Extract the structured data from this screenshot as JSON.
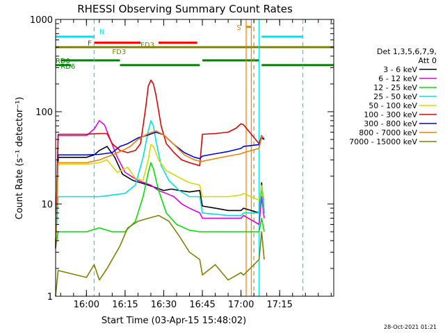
{
  "colors": {
    "background": "#ffffff",
    "axis": "#000000",
    "series": [
      "#000000",
      "#e000e0",
      "#00e000",
      "#00e0e0",
      "#d8d800",
      "#e00000",
      "#0000e0",
      "#f08000",
      "#808000"
    ],
    "cyan": "#00e0f0",
    "orange": "#f08000",
    "red": "#ff0000",
    "olive": "#808000",
    "green": "#008000"
  },
  "chart_data": {
    "type": "line",
    "title": "RHESSI Observing Summary Count Rates",
    "xlabel": "Start Time (03-Apr-15 15:48:02)",
    "ylabel": "Count Rate (s⁻¹ detector⁻¹)",
    "y_scale": "log",
    "ylim": [
      1,
      1000
    ],
    "xlim": [
      "15:48:02",
      "17:36:00"
    ],
    "x_unit": "UT time on 03-Apr-2015",
    "x_ticks": [
      "16:00",
      "16:15",
      "16:30",
      "16:45",
      "17:00",
      "17:15"
    ],
    "y_ticks": [
      {
        "value": 1,
        "label": "1"
      },
      {
        "value": 10,
        "label": "10"
      },
      {
        "value": 100,
        "label": "100"
      },
      {
        "value": 1000,
        "label": "1000"
      }
    ],
    "legend": {
      "placement": "right",
      "header_lines": [
        "Det 1,3,5,6,7,9,",
        "Att 0"
      ],
      "entries": [
        "3 - 6 keV",
        "6 - 12 keV",
        "12 - 25 keV",
        "25 - 50 keV",
        "50 - 100 keV",
        "100 - 300 keV",
        "300 - 800 keV",
        "800 - 7000 keV",
        "7000 - 15000 keV"
      ]
    },
    "gaps": [
      [
        "16:44",
        "16:45"
      ],
      [
        "17:02",
        "17:07"
      ]
    ],
    "series": [
      {
        "name": "3 - 6 keV",
        "x": [
          "15:48",
          "15:49",
          "16:00",
          "16:03",
          "16:05",
          "16:08",
          "16:11",
          "16:14",
          "16:18",
          "16:21",
          "16:24",
          "16:27",
          "16:30",
          "16:33",
          "16:36",
          "16:40",
          "16:44",
          "16:45",
          "16:50",
          "16:55",
          "17:00",
          "17:01",
          "17:07",
          "17:08",
          "17:09"
        ],
        "y": [
          3.3,
          32,
          32,
          34,
          38,
          42,
          32,
          21,
          18,
          17,
          16,
          15,
          14,
          14.5,
          14,
          13.5,
          14,
          9.5,
          9,
          8.5,
          8.5,
          9,
          8,
          17,
          8
        ]
      },
      {
        "name": "6 - 12 keV",
        "x": [
          "15:48",
          "15:49",
          "16:00",
          "16:03",
          "16:05",
          "16:07",
          "16:09",
          "16:12",
          "16:15",
          "16:20",
          "16:25",
          "16:28",
          "16:31",
          "16:34",
          "16:37",
          "16:40",
          "16:44",
          "16:45",
          "16:50",
          "16:55",
          "17:00",
          "17:01",
          "17:07",
          "17:08",
          "17:09"
        ],
        "y": [
          3.3,
          55,
          55,
          65,
          80,
          72,
          52,
          32,
          22,
          18,
          16,
          14,
          13,
          12,
          10,
          9,
          8,
          7,
          7,
          7,
          7,
          7.5,
          6,
          12,
          7
        ]
      },
      {
        "name": "12 - 25 keV",
        "x": [
          "15:48",
          "15:49",
          "16:00",
          "16:05",
          "16:10",
          "16:15",
          "16:19",
          "16:22",
          "16:24",
          "16:25",
          "16:26",
          "16:28",
          "16:31",
          "16:35",
          "16:40",
          "16:44",
          "16:45",
          "17:01",
          "17:07",
          "17:08",
          "17:09"
        ],
        "y": [
          3.3,
          5,
          5,
          5.5,
          5,
          5,
          6.5,
          12,
          22,
          28,
          24,
          14,
          8,
          6,
          5.2,
          5,
          5,
          5,
          5,
          7,
          5
        ]
      },
      {
        "name": "25 - 50 keV",
        "x": [
          "15:48",
          "15:49",
          "16:00",
          "16:05",
          "16:10",
          "16:15",
          "16:19",
          "16:22",
          "16:24",
          "16:25",
          "16:26",
          "16:27",
          "16:29",
          "16:32",
          "16:36",
          "16:40",
          "16:44",
          "16:45",
          "16:55",
          "17:00",
          "17:01",
          "17:07",
          "17:08",
          "17:09"
        ],
        "y": [
          3.3,
          12,
          12,
          12,
          12.5,
          13,
          16,
          32,
          62,
          80,
          70,
          48,
          26,
          18,
          14,
          12,
          12,
          8,
          7.5,
          7.5,
          8,
          8,
          15,
          8
        ]
      },
      {
        "name": "50 - 100 keV",
        "x": [
          "15:48",
          "15:49",
          "16:00",
          "16:05",
          "16:08",
          "16:12",
          "16:16",
          "16:19",
          "16:22",
          "16:24",
          "16:25",
          "16:26",
          "16:28",
          "16:31",
          "16:35",
          "16:40",
          "16:44",
          "16:45",
          "16:50",
          "16:55",
          "17:00",
          "17:01",
          "17:07",
          "17:08",
          "17:09"
        ],
        "y": [
          3.3,
          27,
          27,
          28,
          30,
          22,
          25,
          19,
          18,
          30,
          44,
          42,
          30,
          23,
          20,
          17,
          16,
          12,
          12,
          12,
          12.5,
          13,
          11,
          16,
          11
        ]
      },
      {
        "name": "100 - 300 keV",
        "x": [
          "15:48",
          "15:49",
          "16:00",
          "16:05",
          "16:08",
          "16:10",
          "16:13",
          "16:16",
          "16:19",
          "16:21",
          "16:23",
          "16:24",
          "16:25",
          "16:26",
          "16:27",
          "16:29",
          "16:31",
          "16:34",
          "16:37",
          "16:40",
          "16:44",
          "16:45",
          "16:50",
          "16:55",
          "16:58",
          "17:00",
          "17:01",
          "17:07",
          "17:08",
          "17:09"
        ],
        "y": [
          3.3,
          57,
          57,
          58,
          58,
          45,
          38,
          36,
          38,
          45,
          110,
          190,
          220,
          200,
          150,
          70,
          45,
          36,
          30,
          28,
          26,
          57,
          58,
          60,
          66,
          74,
          72,
          45,
          55,
          50
        ]
      },
      {
        "name": "300 - 800 keV",
        "x": [
          "15:48",
          "15:49",
          "16:00",
          "16:05",
          "16:10",
          "16:13",
          "16:16",
          "16:20",
          "16:24",
          "16:27",
          "16:30",
          "16:34",
          "16:38",
          "16:42",
          "16:44",
          "16:45",
          "16:50",
          "16:55",
          "17:00",
          "17:01",
          "17:07",
          "17:08",
          "17:09"
        ],
        "y": [
          3.3,
          34,
          34,
          34.5,
          36,
          42,
          45,
          52,
          56,
          60,
          56,
          44,
          36,
          32,
          31,
          33,
          35,
          37,
          40,
          42,
          44,
          52,
          50
        ]
      },
      {
        "name": "800 - 7000 keV",
        "x": [
          "15:48",
          "15:49",
          "16:00",
          "16:05",
          "16:10",
          "16:14",
          "16:17",
          "16:20",
          "16:24",
          "16:27",
          "16:30",
          "16:34",
          "16:38",
          "16:42",
          "16:44",
          "16:45",
          "16:50",
          "16:55",
          "17:00",
          "17:01",
          "17:07",
          "17:08",
          "17:09"
        ],
        "y": [
          3.3,
          28,
          28,
          30,
          34,
          38,
          42,
          50,
          58,
          62,
          56,
          44,
          34,
          30,
          29,
          29,
          31,
          33,
          35,
          36,
          40,
          54,
          52
        ]
      },
      {
        "name": "7000 - 15000 keV",
        "x": [
          "15:48",
          "15:49",
          "16:00",
          "16:03",
          "16:05",
          "16:08",
          "16:13",
          "16:16",
          "16:20",
          "16:24",
          "16:28",
          "16:32",
          "16:36",
          "16:40",
          "16:44",
          "16:45",
          "16:50",
          "16:55",
          "17:00",
          "17:01",
          "17:07",
          "17:08",
          "17:09"
        ],
        "y": [
          1,
          1.9,
          1.6,
          2.2,
          1.5,
          2,
          3.5,
          5.5,
          6.5,
          7,
          7.5,
          6.5,
          4.5,
          3,
          2.5,
          1.7,
          2.2,
          1.5,
          1.8,
          1.7,
          2.5,
          5,
          2.5
        ]
      }
    ],
    "annotations": {
      "flag_labels": [
        "N",
        "F",
        "FD3",
        "FD3",
        "RD0",
        "RD6",
        "S"
      ],
      "flags": [
        {
          "label": "N",
          "color": "cyan",
          "segments": [
            [
              "15:48",
              "16:03"
            ],
            [
              "17:08",
              "17:24"
            ]
          ],
          "y": 650
        },
        {
          "label": "F",
          "color": "red",
          "segments": [
            [
              "16:03",
              "16:21"
            ],
            [
              "16:28",
              "16:43"
            ]
          ],
          "y": 560
        },
        {
          "label": "FD3",
          "color": "olive",
          "segments": [
            [
              "15:48",
              "17:36"
            ]
          ],
          "y": 500
        },
        {
          "label": "RD0",
          "color": "green",
          "segments": [
            [
              "15:50",
              "16:13"
            ],
            [
              "16:45",
              "17:07"
            ]
          ],
          "y": 360
        },
        {
          "label": "RD6",
          "color": "green",
          "segments": [
            [
              "15:48",
              "15:54"
            ],
            [
              "16:13",
              "16:44"
            ],
            [
              "17:08",
              "17:36"
            ]
          ],
          "y": 320
        },
        {
          "label": "S",
          "color": "orange",
          "segments": [
            [
              "17:02",
              "17:04"
            ]
          ],
          "y": 830
        }
      ]
    },
    "vertical_lines": [
      {
        "x": "16:03",
        "color": "cyan",
        "style": "dashed"
      },
      {
        "x": "17:02",
        "color": "orange",
        "style": "solid"
      },
      {
        "x": "17:04",
        "color": "orange",
        "style": "solid"
      },
      {
        "x": "17:05",
        "color": "orange",
        "style": "dashed"
      },
      {
        "x": "17:07",
        "color": "cyan",
        "style": "solid"
      },
      {
        "x": "17:24",
        "color": "cyan",
        "style": "dashed"
      }
    ]
  },
  "footer": {
    "timestamp": "28-Oct-2021 01:21"
  }
}
